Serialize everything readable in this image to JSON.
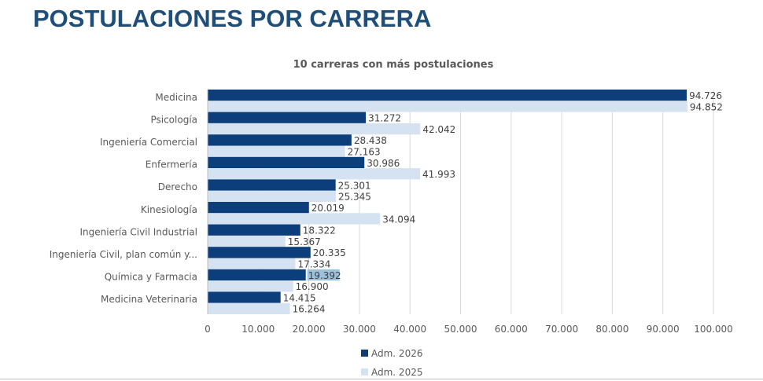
{
  "page_title": "POSTULACIONES POR CARRERA",
  "colors": {
    "title": "#1f4e79",
    "adm2026": "#0d3e7c",
    "adm2025": "#d5e2f2",
    "highlight": "#9dc0db"
  },
  "chart_data": {
    "type": "bar",
    "orientation": "horizontal",
    "title": "10 carreras con más postulaciones",
    "categories": [
      "Medicina",
      "Psicología",
      "Ingeniería Comercial",
      "Enfermería",
      "Derecho",
      "Kinesiología",
      "Ingeniería Civil Industrial",
      "Ingeniería Civil, plan común y...",
      "Química y Farmacia",
      "Medicina Veterinaria"
    ],
    "series": [
      {
        "name": "Adm. 2026",
        "values": [
          94726,
          31272,
          28438,
          30986,
          25301,
          20019,
          18322,
          20335,
          19392,
          14415
        ],
        "labels": [
          "94.726",
          "31.272",
          "28.438",
          "30.986",
          "25.301",
          "20.019",
          "18.322",
          "20.335",
          "19.392",
          "14.415"
        ]
      },
      {
        "name": "Adm. 2025",
        "values": [
          94852,
          42042,
          27163,
          41993,
          25345,
          34094,
          15367,
          17334,
          16900,
          16264
        ],
        "labels": [
          "94.852",
          "42.042",
          "27.163",
          "41.993",
          "25.345",
          "34.094",
          "15.367",
          "17.334",
          "16.900",
          "16.264"
        ]
      }
    ],
    "highlighted_label": {
      "series": 0,
      "index": 8
    },
    "xlim": [
      0,
      100000
    ],
    "xticks": [
      "0",
      "10.000",
      "20.000",
      "30.000",
      "40.000",
      "50.000",
      "60.000",
      "70.000",
      "80.000",
      "90.000",
      "100.000"
    ],
    "grid": true,
    "legend_placement": "bottom-center"
  }
}
